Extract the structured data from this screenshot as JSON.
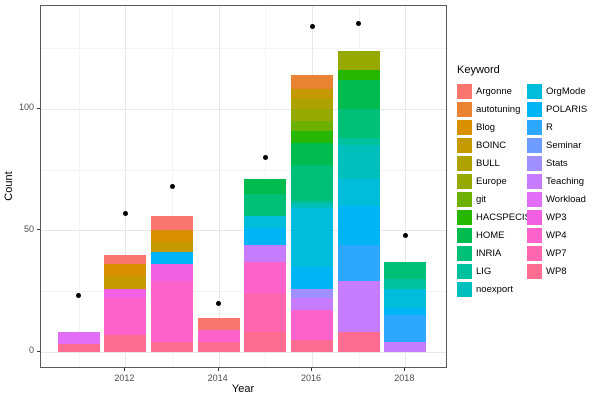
{
  "chart_data": {
    "type": "bar",
    "stacked": true,
    "xlabel": "Year",
    "ylabel": "Count",
    "legend_title": "Keyword",
    "legend_position": "right",
    "grid": "major+minor",
    "x_tick_labels": [
      "2012",
      "2014",
      "2016",
      "2018"
    ],
    "y_tick_labels": [
      "0",
      "50",
      "100"
    ],
    "y_ticks": [
      0,
      50,
      100
    ],
    "y_minor_ticks": [
      25,
      75,
      125
    ],
    "ylim": [
      -7,
      142
    ],
    "years": [
      2011,
      2012,
      2013,
      2014,
      2015,
      2016,
      2017,
      2018
    ],
    "labeled_year_indices": [
      1,
      3,
      5,
      7
    ],
    "keywords": [
      {
        "name": "Argonne",
        "color": "#F8766D"
      },
      {
        "name": "autotuning",
        "color": "#EA8331"
      },
      {
        "name": "Blog",
        "color": "#D89000"
      },
      {
        "name": "BOINC",
        "color": "#C49A00"
      },
      {
        "name": "BULL",
        "color": "#AEA200"
      },
      {
        "name": "Europe",
        "color": "#95A900"
      },
      {
        "name": "git",
        "color": "#6DB000"
      },
      {
        "name": "HACSPECIS",
        "color": "#26B700"
      },
      {
        "name": "HOME",
        "color": "#00BC4F"
      },
      {
        "name": "INRIA",
        "color": "#00C078"
      },
      {
        "name": "LIG",
        "color": "#00C19D"
      },
      {
        "name": "noexport",
        "color": "#00C0BE"
      },
      {
        "name": "OrgMode",
        "color": "#00BDDB"
      },
      {
        "name": "POLARIS",
        "color": "#00B5F5"
      },
      {
        "name": "R",
        "color": "#2CA8FF"
      },
      {
        "name": "Seminar",
        "color": "#6E9BFF"
      },
      {
        "name": "Stats",
        "color": "#A090FF"
      },
      {
        "name": "Teaching",
        "color": "#C77CFF"
      },
      {
        "name": "Workload",
        "color": "#E26DF6"
      },
      {
        "name": "WP3",
        "color": "#F160E2"
      },
      {
        "name": "WP4",
        "color": "#FD61CB"
      },
      {
        "name": "WP7",
        "color": "#FF66AF"
      },
      {
        "name": "WP8",
        "color": "#FF6C92"
      }
    ],
    "bars": [
      {
        "year": 2011,
        "total": 8,
        "segments": [
          {
            "keyword": "Workload",
            "value": 5
          },
          {
            "keyword": "WP8",
            "value": 3
          }
        ]
      },
      {
        "year": 2012,
        "total": 40,
        "segments": [
          {
            "keyword": "Argonne",
            "value": 4
          },
          {
            "keyword": "Blog",
            "value": 5
          },
          {
            "keyword": "BOINC",
            "value": 5
          },
          {
            "keyword": "WP3",
            "value": 4
          },
          {
            "keyword": "WP4",
            "value": 15
          },
          {
            "keyword": "WP8",
            "value": 7
          }
        ]
      },
      {
        "year": 2013,
        "total": 56,
        "segments": [
          {
            "keyword": "Argonne",
            "value": 6
          },
          {
            "keyword": "Blog",
            "value": 5
          },
          {
            "keyword": "BOINC",
            "value": 4
          },
          {
            "keyword": "POLARIS",
            "value": 5
          },
          {
            "keyword": "WP3",
            "value": 7
          },
          {
            "keyword": "WP4",
            "value": 25
          },
          {
            "keyword": "WP8",
            "value": 4
          }
        ]
      },
      {
        "year": 2014,
        "total": 14,
        "segments": [
          {
            "keyword": "Argonne",
            "value": 5
          },
          {
            "keyword": "WP4",
            "value": 5
          },
          {
            "keyword": "WP8",
            "value": 4
          }
        ]
      },
      {
        "year": 2015,
        "total": 71,
        "segments": [
          {
            "keyword": "HOME",
            "value": 6
          },
          {
            "keyword": "INRIA",
            "value": 9
          },
          {
            "keyword": "OrgMode",
            "value": 5
          },
          {
            "keyword": "POLARIS",
            "value": 7
          },
          {
            "keyword": "Teaching",
            "value": 7
          },
          {
            "keyword": "WP4",
            "value": 13
          },
          {
            "keyword": "WP7",
            "value": 16
          },
          {
            "keyword": "WP8",
            "value": 8
          }
        ]
      },
      {
        "year": 2016,
        "total": 114,
        "segments": [
          {
            "keyword": "autotuning",
            "value": 6
          },
          {
            "keyword": "BOINC",
            "value": 4
          },
          {
            "keyword": "BULL",
            "value": 4
          },
          {
            "keyword": "Europe",
            "value": 5
          },
          {
            "keyword": "git",
            "value": 4
          },
          {
            "keyword": "HACSPECIS",
            "value": 5
          },
          {
            "keyword": "HOME",
            "value": 9
          },
          {
            "keyword": "INRIA",
            "value": 15
          },
          {
            "keyword": "LIG",
            "value": 1
          },
          {
            "keyword": "noexport",
            "value": 2
          },
          {
            "keyword": "OrgMode",
            "value": 24
          },
          {
            "keyword": "POLARIS",
            "value": 9
          },
          {
            "keyword": "Stats",
            "value": 4
          },
          {
            "keyword": "Teaching",
            "value": 5
          },
          {
            "keyword": "WP4",
            "value": 12
          },
          {
            "keyword": "WP8",
            "value": 5
          }
        ]
      },
      {
        "year": 2017,
        "total": 124,
        "segments": [
          {
            "keyword": "Europe",
            "value": 8
          },
          {
            "keyword": "HACSPECIS",
            "value": 4
          },
          {
            "keyword": "HOME",
            "value": 12
          },
          {
            "keyword": "INRIA",
            "value": 12
          },
          {
            "keyword": "LIG",
            "value": 3
          },
          {
            "keyword": "noexport",
            "value": 14
          },
          {
            "keyword": "OrgMode",
            "value": 11
          },
          {
            "keyword": "POLARIS",
            "value": 16
          },
          {
            "keyword": "R",
            "value": 15
          },
          {
            "keyword": "Teaching",
            "value": 21
          },
          {
            "keyword": "WP8",
            "value": 8
          }
        ]
      },
      {
        "year": 2018,
        "total": 37,
        "segments": [
          {
            "keyword": "INRIA",
            "value": 7
          },
          {
            "keyword": "LIG",
            "value": 4
          },
          {
            "keyword": "OrgMode",
            "value": 8
          },
          {
            "keyword": "POLARIS",
            "value": 3
          },
          {
            "keyword": "R",
            "value": 11
          },
          {
            "keyword": "Teaching",
            "value": 4
          }
        ]
      }
    ],
    "points": [
      {
        "year": 2011,
        "value": 23
      },
      {
        "year": 2012,
        "value": 57
      },
      {
        "year": 2013,
        "value": 68
      },
      {
        "year": 2014,
        "value": 20
      },
      {
        "year": 2015,
        "value": 80
      },
      {
        "year": 2016,
        "value": 134
      },
      {
        "year": 2017,
        "value": 135
      },
      {
        "year": 2018,
        "value": 48
      }
    ]
  }
}
